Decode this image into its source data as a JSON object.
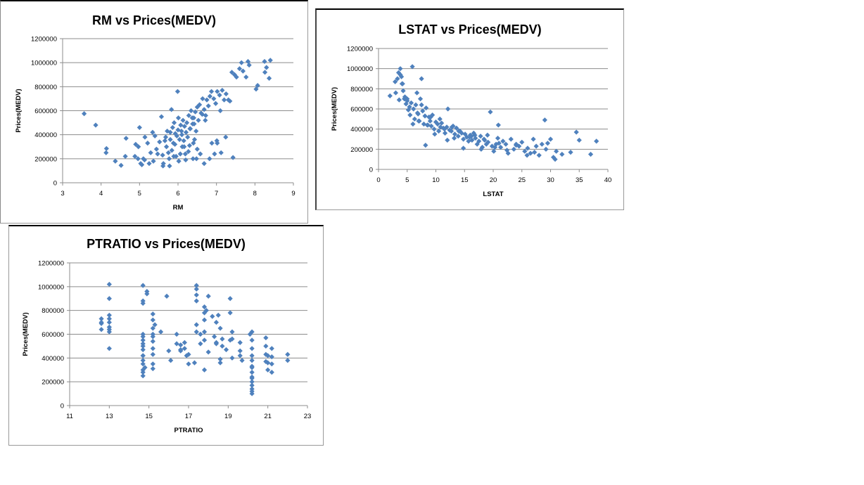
{
  "chart_data": [
    {
      "id": "rm",
      "type": "scatter",
      "title": "RM vs Prices(MEDV)",
      "xlabel": "RM",
      "ylabel": "Prices(MEDV)",
      "xlim": [
        3,
        9
      ],
      "ylim": [
        0,
        1200000
      ],
      "xticks": [
        3,
        4,
        5,
        6,
        7,
        8,
        9
      ],
      "yticks": [
        0,
        200000,
        400000,
        600000,
        800000,
        1000000,
        1200000
      ],
      "grid": "horizontal",
      "legend": "none",
      "marker_color": "#4f81bd",
      "x": [
        3.56,
        3.86,
        4.14,
        4.13,
        4.37,
        4.52,
        4.63,
        4.65,
        4.88,
        4.9,
        4.97,
        5.0,
        5.03,
        5.1,
        5.13,
        5.21,
        5.29,
        5.34,
        5.4,
        5.44,
        5.52,
        5.57,
        5.6,
        5.62,
        5.68,
        5.7,
        5.72,
        5.75,
        5.78,
        5.8,
        5.84,
        5.86,
        5.88,
        5.9,
        5.93,
        5.95,
        5.97,
        6.0,
        6.02,
        6.04,
        6.07,
        6.1,
        6.11,
        6.13,
        6.15,
        6.17,
        6.19,
        6.21,
        6.23,
        6.25,
        6.28,
        6.3,
        6.32,
        6.34,
        6.37,
        6.4,
        6.42,
        6.45,
        6.47,
        6.5,
        6.53,
        6.56,
        6.6,
        6.64,
        6.68,
        6.72,
        6.75,
        6.79,
        6.83,
        6.87,
        6.93,
        6.98,
        7.02,
        7.08,
        7.15,
        7.2,
        7.25,
        7.31,
        7.4,
        7.47,
        7.52,
        7.6,
        7.65,
        7.69,
        7.77,
        7.82,
        7.85,
        8.03,
        8.07,
        8.25,
        8.3,
        8.37,
        8.4,
        8.26,
        7.24,
        6.95,
        6.5,
        6.16,
        5.89,
        5.61,
        5.47,
        5.25,
        5.06,
        5.99,
        6.06,
        6.39,
        6.68,
        6.82,
        7.01,
        7.12,
        7.43,
        7.02,
        6.48,
        6.27,
        5.83,
        5.92,
        6.01,
        6.2,
        6.31,
        6.43,
        6.58,
        6.71,
        5.77,
        5.66,
        5.36,
        5.14,
        4.96,
        6.38,
        6.63,
        6.88,
        7.1,
        7.35,
        6.41,
        6.09,
        5.8
      ],
      "y": [
        575000,
        480000,
        285000,
        250000,
        180000,
        145000,
        220000,
        370000,
        220000,
        320000,
        300000,
        460000,
        160000,
        200000,
        190000,
        330000,
        250000,
        420000,
        390000,
        280000,
        340000,
        550000,
        230000,
        160000,
        380000,
        300000,
        430000,
        250000,
        140000,
        360000,
        270000,
        460000,
        330000,
        500000,
        410000,
        220000,
        390000,
        440000,
        180000,
        360000,
        480000,
        400000,
        300000,
        520000,
        350000,
        470000,
        240000,
        420000,
        500000,
        380000,
        560000,
        310000,
        450000,
        600000,
        540000,
        330000,
        490000,
        590000,
        430000,
        630000,
        520000,
        650000,
        580000,
        700000,
        610000,
        560000,
        690000,
        640000,
        720000,
        760000,
        700000,
        660000,
        760000,
        730000,
        770000,
        690000,
        740000,
        690000,
        920000,
        900000,
        880000,
        950000,
        1000000,
        930000,
        880000,
        1010000,
        980000,
        780000,
        810000,
        1010000,
        960000,
        870000,
        1020000,
        920000,
        380000,
        240000,
        280000,
        300000,
        220000,
        140000,
        240000,
        160000,
        150000,
        760000,
        240000,
        200000,
        160000,
        200000,
        350000,
        250000,
        210000,
        330000,
        200000,
        260000,
        610000,
        320000,
        540000,
        190000,
        450000,
        360000,
        240000,
        520000,
        200000,
        350000,
        180000,
        380000,
        200000,
        490000,
        570000,
        330000,
        600000,
        680000,
        540000,
        430000,
        420000
      ]
    },
    {
      "id": "lstat",
      "type": "scatter",
      "title": "LSTAT vs Prices(MEDV)",
      "xlabel": "LSTAT",
      "ylabel": "Prices(MEDV)",
      "xlim": [
        0,
        40
      ],
      "ylim": [
        0,
        1200000
      ],
      "xticks": [
        0,
        5,
        10,
        15,
        20,
        25,
        30,
        35,
        40
      ],
      "yticks": [
        0,
        200000,
        400000,
        600000,
        800000,
        1000000,
        1200000
      ],
      "grid": "horizontal",
      "legend": "none",
      "marker_color": "#4f81bd",
      "x": [
        2.0,
        2.9,
        3.0,
        3.3,
        3.5,
        3.6,
        3.8,
        4.0,
        4.1,
        4.3,
        4.5,
        4.6,
        4.8,
        5.0,
        5.2,
        5.4,
        5.5,
        5.7,
        5.9,
        6.1,
        6.3,
        6.5,
        6.7,
        6.9,
        7.1,
        7.3,
        7.5,
        7.7,
        7.9,
        8.1,
        8.3,
        8.5,
        8.8,
        9.0,
        9.2,
        9.4,
        9.7,
        10.0,
        10.3,
        10.5,
        10.8,
        11.0,
        11.3,
        11.6,
        11.9,
        12.1,
        12.4,
        12.7,
        13.0,
        13.3,
        13.6,
        13.9,
        14.2,
        14.5,
        14.8,
        15.1,
        15.4,
        15.7,
        16.0,
        16.3,
        16.6,
        16.9,
        17.2,
        17.5,
        17.8,
        18.1,
        18.4,
        18.8,
        19.1,
        19.5,
        19.8,
        20.1,
        20.5,
        20.9,
        21.3,
        21.7,
        22.2,
        22.6,
        23.1,
        23.6,
        24.0,
        24.5,
        25.0,
        25.5,
        26.0,
        26.5,
        27.0,
        27.5,
        28.0,
        28.5,
        29.0,
        29.5,
        30.0,
        30.5,
        31.0,
        32.0,
        33.5,
        34.5,
        35.0,
        37.0,
        38.0,
        6.0,
        7.0,
        8.2,
        9.8,
        12.0,
        13.2,
        14.8,
        16.2,
        17.9,
        19.0,
        20.3,
        21.0,
        22.4,
        24.0,
        25.9,
        27.2,
        29.2,
        30.8,
        5.0,
        4.2,
        3.8,
        6.8,
        8.6,
        11.5,
        14.0,
        15.9,
        18.5,
        20.8,
        10.7,
        12.8,
        9.1,
        16.8,
        7.5
      ],
      "y": [
        730000,
        870000,
        760000,
        900000,
        960000,
        690000,
        1000000,
        920000,
        850000,
        780000,
        700000,
        720000,
        650000,
        680000,
        590000,
        620000,
        540000,
        660000,
        1020000,
        600000,
        500000,
        640000,
        760000,
        550000,
        480000,
        700000,
        900000,
        580000,
        450000,
        530000,
        610000,
        440000,
        520000,
        480000,
        430000,
        540000,
        400000,
        470000,
        450000,
        380000,
        420000,
        460000,
        410000,
        360000,
        420000,
        600000,
        390000,
        380000,
        430000,
        350000,
        410000,
        330000,
        380000,
        360000,
        300000,
        350000,
        320000,
        280000,
        340000,
        290000,
        360000,
        310000,
        250000,
        280000,
        330000,
        220000,
        300000,
        250000,
        270000,
        570000,
        230000,
        180000,
        250000,
        440000,
        220000,
        280000,
        250000,
        160000,
        300000,
        200000,
        240000,
        230000,
        270000,
        180000,
        210000,
        160000,
        300000,
        230000,
        140000,
        250000,
        490000,
        260000,
        300000,
        120000,
        180000,
        150000,
        170000,
        370000,
        290000,
        150000,
        280000,
        450000,
        480000,
        240000,
        350000,
        290000,
        310000,
        210000,
        330000,
        200000,
        340000,
        220000,
        260000,
        190000,
        250000,
        140000,
        170000,
        200000,
        100000,
        700000,
        850000,
        940000,
        560000,
        440000,
        400000,
        380000,
        320000,
        290000,
        310000,
        500000,
        420000,
        520000,
        340000,
        640000
      ]
    },
    {
      "id": "ptratio",
      "type": "scatter",
      "title": "PTRATIO vs Prices(MEDV)",
      "xlabel": "PTRATIO",
      "ylabel": "Prices(MEDV)",
      "xlim": [
        11,
        23
      ],
      "ylim": [
        0,
        1200000
      ],
      "xticks": [
        11,
        13,
        15,
        17,
        19,
        21,
        23
      ],
      "yticks": [
        0,
        200000,
        400000,
        600000,
        800000,
        1000000,
        1200000
      ],
      "grid": "horizontal",
      "legend": "none",
      "marker_color": "#4f81bd",
      "x": [
        12.6,
        12.6,
        12.6,
        13.0,
        13.0,
        13.0,
        13.0,
        13.0,
        13.0,
        13.0,
        13.0,
        14.7,
        14.7,
        14.7,
        14.7,
        14.7,
        14.7,
        14.7,
        14.7,
        14.7,
        14.7,
        14.7,
        14.7,
        14.7,
        14.7,
        14.7,
        14.9,
        14.9,
        15.2,
        15.2,
        15.2,
        15.2,
        15.2,
        15.2,
        15.2,
        15.2,
        15.2,
        15.3,
        15.6,
        15.9,
        16.0,
        16.1,
        16.4,
        16.6,
        16.6,
        16.8,
        16.8,
        16.9,
        17.0,
        17.3,
        17.4,
        17.4,
        17.4,
        17.4,
        17.4,
        17.6,
        17.6,
        17.8,
        17.8,
        17.8,
        17.8,
        17.8,
        17.9,
        18.0,
        18.0,
        18.2,
        18.3,
        18.4,
        18.4,
        18.5,
        18.6,
        18.6,
        18.7,
        18.7,
        18.9,
        19.1,
        19.1,
        19.1,
        19.2,
        19.2,
        19.6,
        19.6,
        19.7,
        20.1,
        20.2,
        20.2,
        20.2,
        20.2,
        20.2,
        20.2,
        20.2,
        20.2,
        20.2,
        20.2,
        20.2,
        20.2,
        20.2,
        20.9,
        20.9,
        20.9,
        21.0,
        21.0,
        21.2,
        21.2,
        21.2,
        21.2,
        22.0,
        22.0,
        12.6,
        13.0,
        14.7,
        15.2,
        16.4,
        17.4,
        17.8,
        18.4,
        19.2,
        20.2,
        21.0,
        17.0,
        18.6,
        19.6,
        14.8,
        16.6,
        20.2,
        20.9
      ],
      "y": [
        730000,
        690000,
        640000,
        1020000,
        900000,
        760000,
        700000,
        660000,
        640000,
        620000,
        480000,
        1010000,
        880000,
        860000,
        600000,
        550000,
        520000,
        500000,
        470000,
        420000,
        380000,
        350000,
        300000,
        280000,
        250000,
        420000,
        960000,
        940000,
        770000,
        720000,
        650000,
        600000,
        540000,
        480000,
        430000,
        350000,
        310000,
        680000,
        620000,
        920000,
        460000,
        380000,
        600000,
        510000,
        460000,
        480000,
        530000,
        420000,
        350000,
        360000,
        1010000,
        980000,
        930000,
        880000,
        680000,
        600000,
        520000,
        830000,
        780000,
        720000,
        620000,
        300000,
        800000,
        920000,
        450000,
        750000,
        580000,
        530000,
        700000,
        760000,
        360000,
        650000,
        500000,
        560000,
        470000,
        900000,
        780000,
        550000,
        620000,
        400000,
        530000,
        460000,
        380000,
        600000,
        620000,
        550000,
        480000,
        420000,
        380000,
        330000,
        280000,
        240000,
        200000,
        170000,
        140000,
        120000,
        100000,
        570000,
        500000,
        430000,
        420000,
        360000,
        480000,
        410000,
        350000,
        280000,
        430000,
        380000,
        700000,
        730000,
        580000,
        580000,
        520000,
        620000,
        550000,
        520000,
        560000,
        320000,
        300000,
        430000,
        390000,
        420000,
        320000,
        470000,
        230000,
        370000
      ]
    }
  ]
}
